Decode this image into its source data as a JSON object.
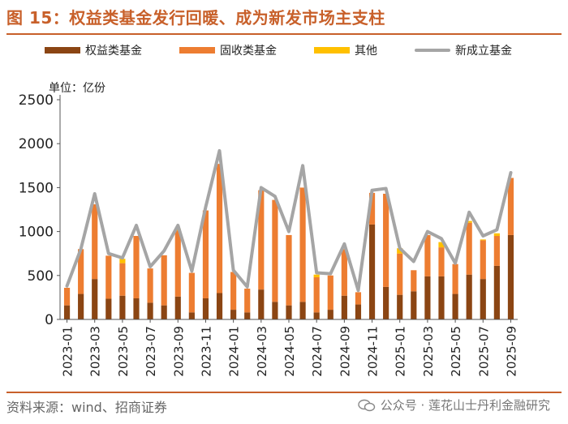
{
  "title": "图 15：权益类基金发行回暖、成为新发市场主支柱",
  "unit_label": "单位：亿份",
  "source": "资料来源：wind、招商证券",
  "watermark": "公众号 · 莲花山士丹利金融研究",
  "colors": {
    "equity": "#8b4513",
    "fixed_income": "#ed7d31",
    "other": "#ffc000",
    "new_total": "#a5a5a5",
    "accent": "#c8602a"
  },
  "chart_data": {
    "type": "bar",
    "stacked": true,
    "title": "权益类基金发行回暖、成为新发市场主支柱",
    "ylabel": "单位：亿份",
    "ylim": [
      0,
      2500
    ],
    "yticks": [
      0,
      500,
      1000,
      1500,
      2000,
      2500
    ],
    "categories": [
      "2023-01",
      "2023-02",
      "2023-03",
      "2023-04",
      "2023-05",
      "2023-06",
      "2023-07",
      "2023-08",
      "2023-09",
      "2023-10",
      "2023-11",
      "2023-12",
      "2024-01",
      "2024-02",
      "2024-03",
      "2024-04",
      "2024-05",
      "2024-06",
      "2024-07",
      "2024-08",
      "2024-09",
      "2024-10",
      "2024-11",
      "2024-12",
      "2025-01",
      "2025-02",
      "2025-03",
      "2025-04",
      "2025-05",
      "2025-06",
      "2025-07",
      "2025-08",
      "2025-09"
    ],
    "xtick_labels": [
      "2023-01",
      "2023-03",
      "2023-05",
      "2023-07",
      "2023-09",
      "2023-11",
      "2024-01",
      "2024-03",
      "2024-05",
      "2024-07",
      "2024-09",
      "2024-11",
      "2025-01",
      "2025-03",
      "2025-05",
      "2025-07",
      "2025-09"
    ],
    "series": [
      {
        "name": "权益类基金",
        "kind": "bar",
        "values": [
          160,
          290,
          460,
          235,
          270,
          240,
          190,
          160,
          260,
          80,
          240,
          300,
          110,
          80,
          340,
          200,
          160,
          200,
          80,
          110,
          270,
          170,
          1080,
          370,
          280,
          320,
          490,
          490,
          290,
          510,
          460,
          610,
          960
        ]
      },
      {
        "name": "固收类基金",
        "kind": "bar",
        "values": [
          200,
          510,
          850,
          490,
          370,
          710,
          390,
          570,
          750,
          450,
          1000,
          1470,
          430,
          270,
          1130,
          1160,
          800,
          1300,
          400,
          390,
          530,
          140,
          360,
          1060,
          470,
          240,
          470,
          330,
          340,
          590,
          440,
          340,
          650
        ]
      },
      {
        "name": "其他",
        "kind": "bar",
        "values": [
          0,
          0,
          0,
          0,
          50,
          0,
          0,
          0,
          20,
          0,
          0,
          0,
          0,
          0,
          0,
          0,
          0,
          0,
          30,
          0,
          0,
          0,
          0,
          0,
          60,
          0,
          0,
          60,
          0,
          20,
          10,
          30,
          0
        ]
      },
      {
        "name": "新成立基金",
        "kind": "line",
        "values": [
          380,
          800,
          1430,
          750,
          700,
          1070,
          600,
          780,
          1070,
          550,
          1280,
          1920,
          560,
          370,
          1500,
          1400,
          1000,
          1750,
          530,
          520,
          860,
          330,
          1470,
          1490,
          810,
          660,
          1000,
          920,
          640,
          1220,
          950,
          1020,
          1670
        ]
      }
    ]
  }
}
